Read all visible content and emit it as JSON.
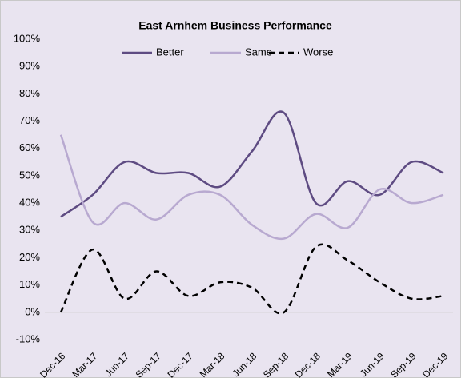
{
  "chart_data": {
    "type": "line",
    "title": "East Arnhem Business Performance",
    "categories": [
      "Dec-16",
      "Mar-17",
      "Jun-17",
      "Sep-17",
      "Dec-17",
      "Mar-18",
      "Jun-18",
      "Sep-18",
      "Dec-18",
      "Mar-19",
      "Jun-19",
      "Sep-19",
      "Dec-19"
    ],
    "series": [
      {
        "name": "Better",
        "color": "#5e4b82",
        "dash": false,
        "values": [
          35,
          43,
          55,
          51,
          51,
          46,
          59,
          73,
          40,
          48,
          43,
          55,
          51
        ]
      },
      {
        "name": "Same",
        "color": "#b8a9d0",
        "dash": false,
        "values": [
          65,
          33,
          40,
          34,
          43,
          43,
          32,
          27,
          36,
          31,
          45,
          40,
          43
        ]
      },
      {
        "name": "Worse",
        "color": "#000000",
        "dash": true,
        "values": [
          0,
          23,
          5,
          15,
          6,
          11,
          9,
          0,
          24,
          19,
          11,
          5,
          6
        ]
      }
    ],
    "ylim": [
      -10,
      100
    ],
    "yticks": [
      {
        "value": -10,
        "label": "-10%"
      },
      {
        "value": 0,
        "label": "0%"
      },
      {
        "value": 10,
        "label": "10%"
      },
      {
        "value": 20,
        "label": "20%"
      },
      {
        "value": 30,
        "label": "30%"
      },
      {
        "value": 40,
        "label": "40%"
      },
      {
        "value": 50,
        "label": "50%"
      },
      {
        "value": 60,
        "label": "60%"
      },
      {
        "value": 70,
        "label": "70%"
      },
      {
        "value": 80,
        "label": "80%"
      },
      {
        "value": 90,
        "label": "90%"
      },
      {
        "value": 100,
        "label": "100%"
      }
    ],
    "grid": false,
    "legend": "top"
  }
}
